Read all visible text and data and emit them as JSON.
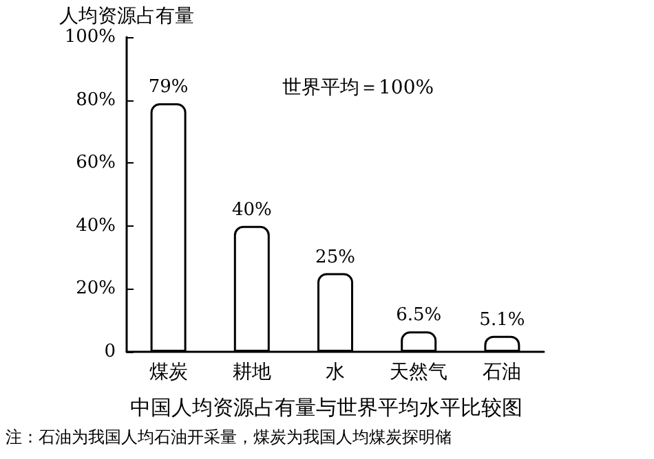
{
  "chart_data": {
    "type": "bar",
    "title": "中国人均资源占有量与世界平均水平比较图",
    "ylabel": "人均资源占有量",
    "categories": [
      "煤炭",
      "耕地",
      "水",
      "天然气",
      "石油"
    ],
    "values": [
      79,
      40,
      25,
      6.5,
      5.1
    ],
    "value_labels": [
      "79%",
      "40%",
      "25%",
      "6.5%",
      "5.1%"
    ],
    "color": "#ffffff",
    "ylim": [
      0,
      100
    ],
    "yticks": [
      {
        "value": 0,
        "label": "0"
      },
      {
        "value": 20,
        "label": "20%"
      },
      {
        "value": 40,
        "label": "40%"
      },
      {
        "value": 60,
        "label": "60%"
      },
      {
        "value": 80,
        "label": "80%"
      },
      {
        "value": 100,
        "label": "100%"
      }
    ],
    "grid": false,
    "annotations": [
      "世界平均＝100%",
      "注：石油为我国人均石油开采量，煤炭为我国人均煤炭探明储"
    ]
  }
}
